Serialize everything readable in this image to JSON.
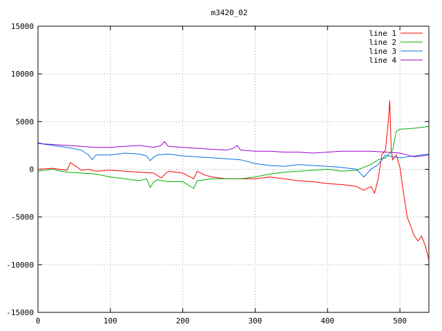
{
  "chart_data": {
    "type": "line",
    "title": "m3420_02",
    "xlabel": "",
    "ylabel": "",
    "xlim": [
      0,
      540
    ],
    "ylim": [
      -15000,
      15000
    ],
    "x_ticks": [
      0,
      100,
      200,
      300,
      400,
      500
    ],
    "y_ticks": [
      -15000,
      -10000,
      -5000,
      0,
      5000,
      10000,
      15000
    ],
    "grid": true,
    "legend_position": "top-right",
    "series": [
      {
        "name": "line 1",
        "color": "#ff0000",
        "x": [
          0,
          20,
          40,
          45,
          60,
          70,
          80,
          100,
          120,
          140,
          160,
          170,
          180,
          200,
          215,
          220,
          230,
          240,
          260,
          280,
          300,
          320,
          340,
          360,
          380,
          400,
          420,
          440,
          450,
          460,
          465,
          470,
          475,
          480,
          484,
          486,
          488,
          490,
          495,
          500,
          505,
          510,
          515,
          520,
          525,
          530,
          535,
          540
        ],
        "y": [
          0,
          100,
          -100,
          700,
          -100,
          0,
          -200,
          -100,
          -200,
          -300,
          -400,
          -900,
          -200,
          -400,
          -1000,
          -200,
          -600,
          -800,
          -1000,
          -1000,
          -1000,
          -800,
          -1000,
          -1200,
          -1300,
          -1500,
          -1600,
          -1800,
          -2200,
          -1800,
          -2500,
          -1000,
          1500,
          2000,
          5000,
          7200,
          2000,
          1000,
          1500,
          200,
          -2500,
          -5000,
          -6000,
          -7000,
          -7500,
          -7000,
          -8000,
          -9500
        ]
      },
      {
        "name": "line 2",
        "color": "#00b000",
        "x": [
          0,
          20,
          40,
          60,
          80,
          100,
          120,
          140,
          150,
          155,
          160,
          165,
          180,
          200,
          215,
          220,
          240,
          260,
          280,
          300,
          320,
          340,
          360,
          380,
          400,
          420,
          440,
          460,
          470,
          480,
          490,
          495,
          500,
          520,
          540
        ],
        "y": [
          -200,
          0,
          -300,
          -400,
          -500,
          -800,
          -1000,
          -1200,
          -1000,
          -1900,
          -1300,
          -1100,
          -1300,
          -1300,
          -2000,
          -1200,
          -1000,
          -1000,
          -1000,
          -800,
          -500,
          -300,
          -200,
          -100,
          0,
          -200,
          -100,
          500,
          1000,
          1200,
          2000,
          4000,
          4200,
          4300,
          4500
        ]
      },
      {
        "name": "line 3",
        "color": "#0070e0",
        "x": [
          0,
          10,
          20,
          40,
          60,
          70,
          75,
          80,
          100,
          120,
          140,
          150,
          155,
          160,
          165,
          180,
          200,
          220,
          240,
          260,
          280,
          300,
          320,
          340,
          360,
          380,
          400,
          420,
          440,
          450,
          460,
          470,
          480,
          490,
          500,
          520,
          540
        ],
        "y": [
          2800,
          2600,
          2500,
          2300,
          2000,
          1500,
          1000,
          1500,
          1500,
          1700,
          1600,
          1400,
          900,
          1300,
          1500,
          1600,
          1400,
          1300,
          1200,
          1100,
          1000,
          600,
          400,
          300,
          500,
          400,
          300,
          200,
          0,
          -800,
          0,
          500,
          1500,
          1300,
          1200,
          1400,
          1600
        ]
      },
      {
        "name": "line 4",
        "color": "#9900cc",
        "x": [
          0,
          20,
          40,
          60,
          80,
          100,
          120,
          140,
          160,
          170,
          175,
          180,
          200,
          220,
          240,
          260,
          270,
          275,
          280,
          300,
          320,
          340,
          360,
          380,
          400,
          420,
          440,
          460,
          480,
          500,
          510,
          520,
          540
        ],
        "y": [
          2700,
          2600,
          2500,
          2400,
          2300,
          2300,
          2400,
          2500,
          2300,
          2500,
          2900,
          2400,
          2300,
          2200,
          2100,
          2000,
          2200,
          2500,
          2000,
          1900,
          1900,
          1800,
          1800,
          1700,
          1800,
          1900,
          1900,
          1900,
          1800,
          1700,
          1500,
          1300,
          1500
        ]
      }
    ]
  }
}
